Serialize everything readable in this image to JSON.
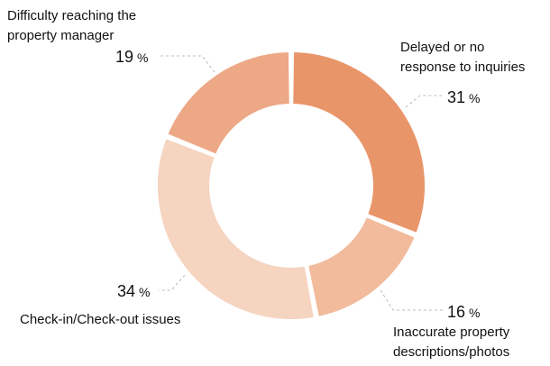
{
  "chart_data": {
    "type": "pie",
    "donut": true,
    "title": "",
    "unit": "%",
    "slices": [
      {
        "name": "Delayed or no response to inquiries",
        "label_lines": [
          "Delayed or no",
          "response to inquiries"
        ],
        "value": 31,
        "color": "#E9956A"
      },
      {
        "name": "Inaccurate property descriptions/photos",
        "label_lines": [
          "Inaccurate property",
          "descriptions/photos"
        ],
        "value": 16,
        "color": "#F1BB9C"
      },
      {
        "name": "Check-in/Check-out issues",
        "label_lines": [
          "Check-in/Check-out issues"
        ],
        "value": 34,
        "color": "#F5D4C0"
      },
      {
        "name": "Difficulty reaching the property manager",
        "label_lines": [
          "Difficulty reaching the",
          "property manager"
        ],
        "value": 19,
        "color": "#EDA886"
      }
    ]
  }
}
